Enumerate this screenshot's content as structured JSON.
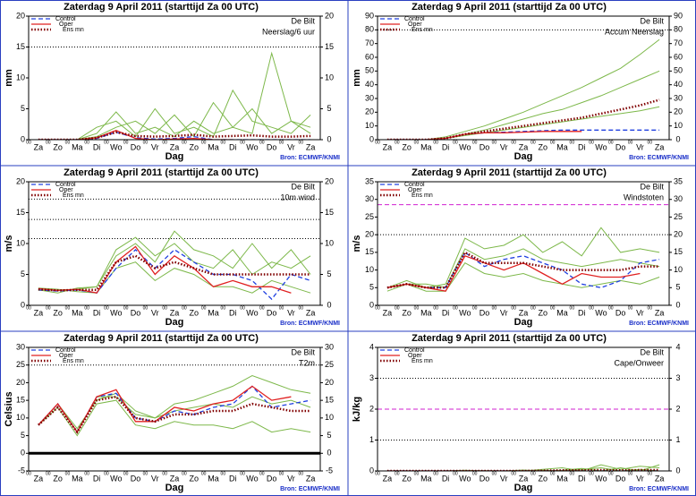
{
  "chart_data": [
    {
      "type": "line",
      "title": "Zaterdag  9 April    2011  (starttijd  Za 00 UTC)",
      "station": "De Bilt",
      "variable": "Neerslag/6 uur",
      "y_label": "mm",
      "x_label": "Dag",
      "source": "Bron: ECMWF/KNMI",
      "day_start_label": "00",
      "categories": [
        "Za",
        "Zo",
        "Ma",
        "Di",
        "Wo",
        "Do",
        "Vr",
        "Za",
        "Zo",
        "Ma",
        "Di",
        "Wo",
        "Do",
        "Vr",
        "Za"
      ],
      "ylim": [
        0,
        20
      ],
      "yticks": [
        0,
        5,
        10,
        15,
        20
      ],
      "reference_lines": [
        {
          "value": 15,
          "color": "#000000",
          "style": "dotted"
        }
      ],
      "member_color": "#7db84a",
      "members": [
        [
          0,
          0,
          0,
          1,
          4.5,
          1,
          2,
          0.5,
          3,
          1,
          2,
          5,
          1,
          3,
          2
        ],
        [
          0,
          0,
          0,
          0.5,
          2,
          3,
          1,
          4,
          0.5,
          6,
          2,
          1,
          14,
          3,
          1
        ],
        [
          0,
          0,
          0,
          2,
          3,
          0.5,
          5,
          1,
          2,
          0.5,
          8,
          3,
          2,
          1,
          4
        ]
      ],
      "series": [
        {
          "name": "Control",
          "color": "#2040e0",
          "style": "dashed",
          "values": [
            0,
            0,
            0,
            0.2,
            1.2,
            0.3,
            0.1,
            0.2,
            0.5,
            0,
            0,
            0,
            0,
            0,
            0
          ]
        },
        {
          "name": "Oper",
          "color": "#e02020",
          "style": "solid",
          "values": [
            0,
            0,
            0,
            0.3,
            1.5,
            0.2,
            0,
            0.1,
            0.2,
            0,
            0,
            null,
            null,
            null,
            null
          ]
        },
        {
          "name": "Ens mn",
          "color": "#800000",
          "style": "dotted",
          "values": [
            0,
            0,
            0,
            0.3,
            1.2,
            0.6,
            0.5,
            0.6,
            0.8,
            0.5,
            0.6,
            0.7,
            0.5,
            0.5,
            0.6
          ]
        }
      ]
    },
    {
      "type": "line",
      "title": "Zaterdag  9 April    2011  (starttijd  Za 00 UTC)",
      "station": "De Bilt",
      "variable": "Accum Neerslag",
      "y_label": "mm",
      "x_label": "Dag",
      "source": "Bron: ECMWF/KNMI",
      "day_start_label": "00",
      "categories": [
        "Za",
        "Zo",
        "Ma",
        "Di",
        "Wo",
        "Do",
        "Vr",
        "Za",
        "Zo",
        "Ma",
        "Di",
        "Wo",
        "Do",
        "Vr",
        "Za"
      ],
      "ylim": [
        0,
        90
      ],
      "yticks": [
        0,
        10,
        20,
        30,
        40,
        50,
        60,
        70,
        80,
        90
      ],
      "reference_lines": [
        {
          "value": 80,
          "color": "#000000",
          "style": "dotted"
        }
      ],
      "member_color": "#7db84a",
      "members": [
        [
          0,
          0,
          0,
          2,
          6,
          10,
          15,
          20,
          26,
          32,
          38,
          45,
          52,
          62,
          73
        ],
        [
          0,
          0,
          0,
          1,
          3,
          5,
          7,
          9,
          11,
          13,
          15,
          17,
          19,
          21,
          24
        ],
        [
          0,
          0,
          0,
          1,
          4,
          7,
          11,
          15,
          19,
          22,
          27,
          32,
          38,
          44,
          50
        ]
      ],
      "series": [
        {
          "name": "Control",
          "color": "#2040e0",
          "style": "dashed",
          "values": [
            0,
            0,
            0,
            1,
            4,
            5,
            5.5,
            6,
            6.5,
            7,
            7,
            7,
            7,
            7,
            7
          ]
        },
        {
          "name": "Oper",
          "color": "#e02020",
          "style": "solid",
          "values": [
            0,
            0,
            0,
            1,
            4,
            5,
            5,
            5.5,
            6,
            6,
            6,
            null,
            null,
            null,
            null
          ]
        },
        {
          "name": "Ens mn",
          "color": "#800000",
          "style": "dotted",
          "values": [
            0,
            0,
            0,
            1,
            4,
            6,
            8,
            10,
            12,
            14,
            16,
            19,
            22,
            25,
            29
          ]
        }
      ]
    },
    {
      "type": "line",
      "title": "Zaterdag  9 April    2011  (starttijd  Za 00 UTC)",
      "station": "De Bilt",
      "variable": "10m wind",
      "y_label": "m/s",
      "x_label": "Dag",
      "source": "Bron: ECMWF/KNMI",
      "day_start_label": "00",
      "categories": [
        "Za",
        "Zo",
        "Ma",
        "Di",
        "Wo",
        "Do",
        "Vr",
        "Za",
        "Zo",
        "Ma",
        "Di",
        "Wo",
        "Do",
        "Vr",
        "Za"
      ],
      "ylim": [
        0,
        20
      ],
      "yticks": [
        0,
        5,
        10,
        15,
        20
      ],
      "reference_lines": [
        {
          "value": 10.8,
          "color": "#000000",
          "style": "dotted"
        },
        {
          "value": 13.9,
          "color": "#000000",
          "style": "dotted"
        },
        {
          "value": 17.2,
          "color": "#000000",
          "style": "dotted"
        }
      ],
      "member_color": "#7db84a",
      "members": [
        [
          2.5,
          2,
          2.8,
          3,
          9,
          11,
          8,
          10,
          7,
          6,
          9,
          5,
          7,
          6,
          8
        ],
        [
          2.8,
          2.6,
          2.2,
          2,
          6,
          7,
          4,
          6,
          5,
          3,
          3,
          2,
          4,
          3,
          2
        ],
        [
          2.4,
          2.5,
          2.6,
          3,
          8,
          10,
          7,
          12,
          9,
          8,
          6,
          10,
          6,
          9,
          5
        ]
      ],
      "series": [
        {
          "name": "Control",
          "color": "#2040e0",
          "style": "dashed",
          "values": [
            2.5,
            2.3,
            2.5,
            2,
            6,
            9,
            6,
            9,
            7,
            5,
            5,
            4,
            1,
            5,
            4
          ]
        },
        {
          "name": "Oper",
          "color": "#e02020",
          "style": "solid",
          "values": [
            2.7,
            2.4,
            2.6,
            2,
            7,
            9.5,
            5,
            8,
            6,
            3,
            4,
            3,
            3,
            2,
            null
          ]
        },
        {
          "name": "Ens mn",
          "color": "#800000",
          "style": "dotted",
          "values": [
            2.6,
            2.4,
            2.5,
            2.5,
            7,
            8,
            6,
            7,
            6,
            5,
            5,
            5,
            5,
            5,
            5
          ]
        }
      ]
    },
    {
      "type": "line",
      "title": "Zaterdag  9 April    2011  (starttijd  Za 00 UTC)",
      "station": "De Bilt",
      "variable": "Windstoten",
      "y_label": "m/s",
      "x_label": "Dag",
      "source": "Bron: ECMWF/KNMI",
      "day_start_label": "00",
      "categories": [
        "Za",
        "Zo",
        "Ma",
        "Di",
        "Wo",
        "Do",
        "Vr",
        "Za",
        "Zo",
        "Ma",
        "Di",
        "Wo",
        "Do",
        "Vr",
        "Za"
      ],
      "ylim": [
        0,
        35
      ],
      "yticks": [
        0,
        5,
        10,
        15,
        20,
        25,
        30,
        35
      ],
      "reference_lines": [
        {
          "value": 20,
          "color": "#000000",
          "style": "dotted"
        },
        {
          "value": 28.5,
          "color": "#d020d0",
          "style": "dashed"
        }
      ],
      "member_color": "#7db84a",
      "members": [
        [
          5,
          7,
          5,
          6,
          19,
          16,
          17,
          20,
          15,
          18,
          14,
          22,
          15,
          16,
          15
        ],
        [
          4,
          6,
          4,
          4,
          12,
          9,
          8,
          9,
          7,
          6,
          5,
          6,
          7,
          6,
          8
        ],
        [
          5,
          6,
          6,
          5,
          16,
          13,
          14,
          16,
          13,
          12,
          11,
          12,
          13,
          12,
          11
        ]
      ],
      "series": [
        {
          "name": "Control",
          "color": "#2040e0",
          "style": "dashed",
          "values": [
            5,
            6,
            5,
            5,
            15,
            11,
            13,
            14,
            12,
            10,
            6,
            5,
            7,
            12,
            13
          ]
        },
        {
          "name": "Oper",
          "color": "#e02020",
          "style": "solid",
          "values": [
            5,
            6,
            5,
            4,
            14,
            12,
            10,
            12,
            9,
            6,
            9,
            8,
            8,
            9,
            null
          ]
        },
        {
          "name": "Ens mn",
          "color": "#800000",
          "style": "dotted",
          "values": [
            5,
            6,
            5,
            5,
            15,
            12,
            12,
            12,
            11,
            10,
            10,
            10,
            10,
            11,
            11
          ]
        }
      ]
    },
    {
      "type": "line",
      "title": "Zaterdag  9 April    2011  (starttijd  Za 00 UTC)",
      "station": "De Bilt",
      "variable": "T2m",
      "y_label": "Celsius",
      "x_label": "Dag",
      "source": "Bron: ECMWF/KNMI",
      "day_start_label": "00",
      "categories": [
        "Za",
        "Zo",
        "Ma",
        "Di",
        "Wo",
        "Do",
        "Vr",
        "Za",
        "Zo",
        "Ma",
        "Di",
        "Wo",
        "Do",
        "Vr",
        "Za"
      ],
      "ylim": [
        -5,
        30
      ],
      "yticks": [
        -5,
        0,
        5,
        10,
        15,
        20,
        25,
        30
      ],
      "reference_lines": [
        {
          "value": 25,
          "color": "#000000",
          "style": "dotted"
        },
        {
          "value": 0,
          "color": "#000000",
          "style": "thick"
        }
      ],
      "member_color": "#7db84a",
      "members": [
        [
          8,
          14,
          7,
          15,
          17,
          12,
          10,
          14,
          15,
          17,
          19,
          22,
          20,
          18,
          17
        ],
        [
          8,
          13,
          5,
          14,
          15,
          8,
          7,
          9,
          8,
          8,
          7,
          9,
          6,
          7,
          6
        ],
        [
          8,
          14,
          6,
          16,
          16,
          11,
          10,
          12,
          13,
          14,
          13,
          16,
          14,
          15,
          13
        ]
      ],
      "series": [
        {
          "name": "Control",
          "color": "#2040e0",
          "style": "dashed",
          "values": [
            8,
            14,
            6,
            16,
            17,
            10,
            9,
            12,
            11,
            13,
            14,
            19,
            13,
            14,
            15
          ]
        },
        {
          "name": "Oper",
          "color": "#e02020",
          "style": "solid",
          "values": [
            8,
            14,
            6,
            16,
            18,
            9,
            9,
            13,
            12,
            14,
            15,
            19,
            15,
            16,
            null
          ]
        },
        {
          "name": "Ens mn",
          "color": "#800000",
          "style": "dotted",
          "values": [
            8,
            13,
            6,
            15,
            16,
            10,
            9,
            11,
            11,
            12,
            12,
            14,
            13,
            12,
            12
          ]
        }
      ]
    },
    {
      "type": "line",
      "title": "Zaterdag  9 April    2011  (starttijd  Za 00 UTC)",
      "station": "De Bilt",
      "variable": "Cape/Onweer",
      "y_label": "kJ/kg",
      "x_label": "Dag",
      "source": "Bron: ECMWF/KNMI",
      "day_start_label": "00",
      "categories": [
        "Za",
        "Zo",
        "Ma",
        "Di",
        "Wo",
        "Do",
        "Vr",
        "Za",
        "Zo",
        "Ma",
        "Di",
        "Wo",
        "Do",
        "Vr",
        "Za"
      ],
      "ylim": [
        0,
        4
      ],
      "yticks": [
        0,
        1,
        2,
        3,
        4
      ],
      "reference_lines": [
        {
          "value": 1,
          "color": "#000000",
          "style": "dotted"
        },
        {
          "value": 3,
          "color": "#000000",
          "style": "dotted"
        },
        {
          "value": 2,
          "color": "#d020d0",
          "style": "dashed"
        }
      ],
      "member_color": "#7db84a",
      "members": [
        [
          0,
          0,
          0,
          0,
          0,
          0,
          0,
          0,
          0.05,
          0.1,
          0,
          0.2,
          0.05,
          0.15,
          0.1
        ],
        [
          0,
          0,
          0,
          0,
          0.02,
          0,
          0,
          0.03,
          0,
          0.02,
          0.08,
          0,
          0.1,
          0,
          0.2
        ],
        [
          0,
          0,
          0,
          0,
          0,
          0.01,
          0,
          0,
          0.02,
          0,
          0.05,
          0.1,
          0,
          0.05,
          0
        ]
      ],
      "series": [
        {
          "name": "Control",
          "color": "#2040e0",
          "style": "dashed",
          "values": [
            0,
            0,
            0,
            0,
            0,
            0,
            0,
            0,
            0,
            0,
            0,
            0,
            0,
            0,
            0
          ]
        },
        {
          "name": "Oper",
          "color": "#e02020",
          "style": "solid",
          "values": [
            0,
            0,
            0,
            0,
            0,
            0,
            0,
            0,
            0,
            0,
            0,
            null,
            null,
            null,
            null
          ]
        },
        {
          "name": "Ens mn",
          "color": "#800000",
          "style": "dotted",
          "values": [
            0,
            0,
            0,
            0,
            0,
            0,
            0,
            0,
            0.01,
            0.02,
            0.02,
            0.03,
            0.02,
            0.03,
            0.03
          ]
        }
      ]
    }
  ]
}
